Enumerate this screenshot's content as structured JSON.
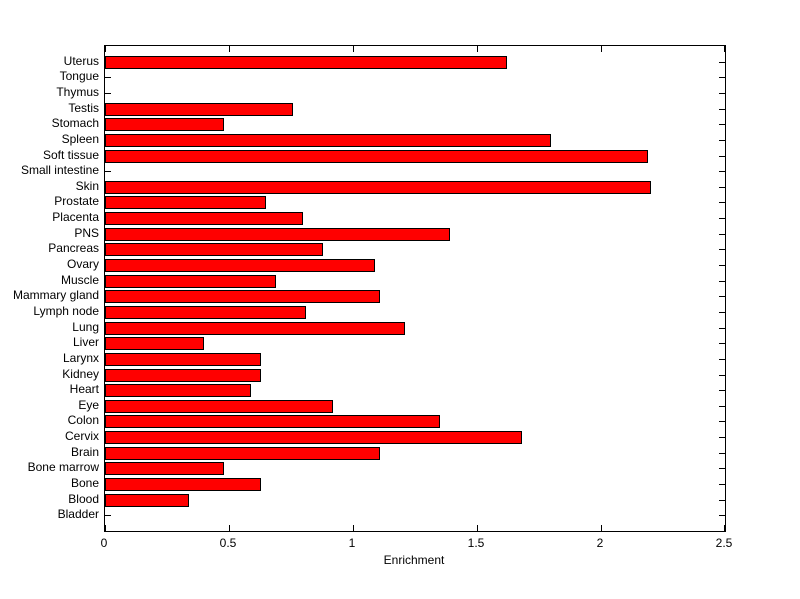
{
  "figure": {
    "background_color": "#ffffff",
    "plot_border_color": "#000000"
  },
  "chart_data": {
    "type": "bar",
    "orientation": "horizontal",
    "title": "",
    "xlabel": "Enrichment",
    "ylabel": "",
    "xlim": [
      0,
      2.5
    ],
    "x_ticks": [
      0,
      0.5,
      1,
      1.5,
      2,
      2.5
    ],
    "x_tick_labels": [
      "0",
      "0.5",
      "1",
      "1.5",
      "2",
      "2.5"
    ],
    "grid": false,
    "legend": "none",
    "bar_color": "#ff0000",
    "bar_edge_color": "#000000",
    "categories": [
      "Uterus",
      "Tongue",
      "Thymus",
      "Testis",
      "Stomach",
      "Spleen",
      "Soft tissue",
      "Small intestine",
      "Skin",
      "Prostate",
      "Placenta",
      "PNS",
      "Pancreas",
      "Ovary",
      "Muscle",
      "Mammary gland",
      "Lymph node",
      "Lung",
      "Liver",
      "Larynx",
      "Kidney",
      "Heart",
      "Eye",
      "Colon",
      "Cervix",
      "Brain",
      "Bone marrow",
      "Bone",
      "Blood",
      "Bladder"
    ],
    "values": [
      1.62,
      0,
      0,
      0.76,
      0.48,
      1.8,
      2.19,
      0,
      2.2,
      0.65,
      0.8,
      1.39,
      0.88,
      1.09,
      0.69,
      1.11,
      0.81,
      1.21,
      0.4,
      0.63,
      0.63,
      0.59,
      0.92,
      1.35,
      1.68,
      1.11,
      0.48,
      0.63,
      0.34,
      0
    ],
    "category_order_note": "listed top to bottom"
  }
}
